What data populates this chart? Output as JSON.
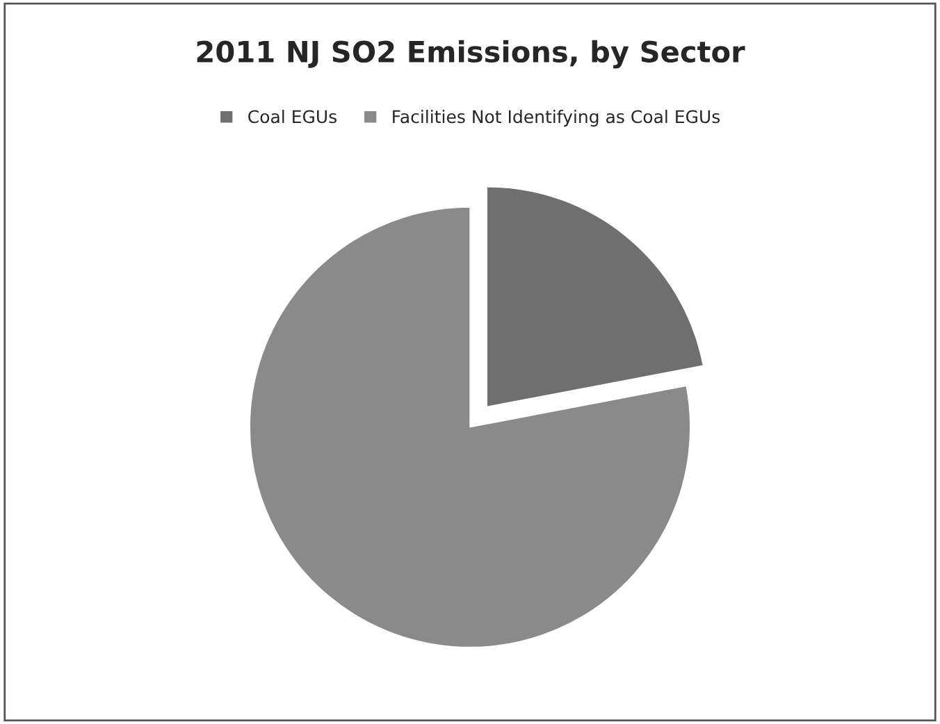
{
  "chart_data": {
    "type": "pie",
    "title": "2011 NJ SO2 Emissions, by Sector",
    "categories": [
      "Coal EGUs",
      "Facilities Not Identifying as Coal EGUs"
    ],
    "values": [
      22,
      78
    ],
    "colors": [
      "#6f6f6f",
      "#8a8a8a"
    ],
    "legend": "top"
  }
}
